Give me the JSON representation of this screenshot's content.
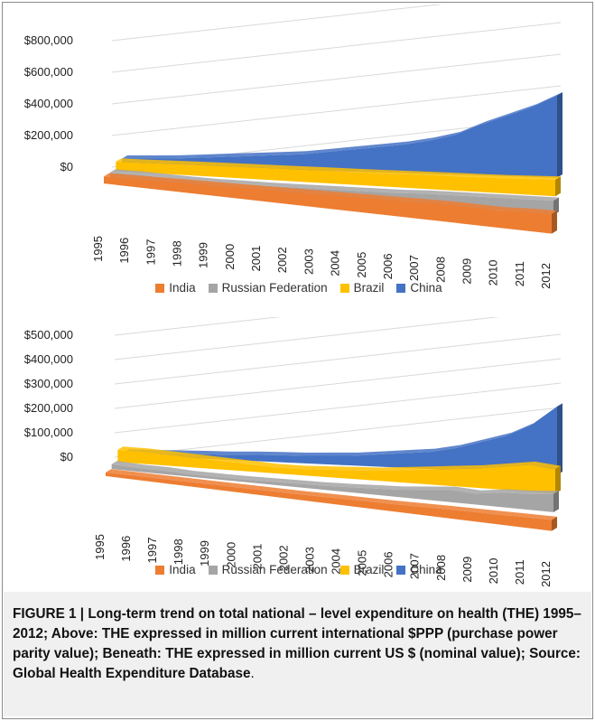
{
  "chart_data": [
    {
      "type": "area",
      "style": "3d-stacked-depth",
      "title": "",
      "categories": [
        "1995",
        "1996",
        "1997",
        "1998",
        "1999",
        "2000",
        "2001",
        "2002",
        "2003",
        "2004",
        "2005",
        "2006",
        "2007",
        "2008",
        "2009",
        "2010",
        "2011",
        "2012"
      ],
      "y_ticks": [
        "$0",
        "$200,000",
        "$400,000",
        "$600,000",
        "$800,000"
      ],
      "ylim": [
        0,
        800000
      ],
      "legend_position": "bottom",
      "series": [
        {
          "name": "India",
          "color": "#ED7D31",
          "values": [
            45000,
            50000,
            55000,
            60000,
            65000,
            70000,
            75000,
            80000,
            85000,
            90000,
            95000,
            100000,
            105000,
            110000,
            110000,
            110000,
            120000,
            125000
          ]
        },
        {
          "name": "Russian Federation",
          "color": "#A5A5A5",
          "values": [
            30000,
            32000,
            28000,
            25000,
            25000,
            28000,
            30000,
            35000,
            40000,
            45000,
            50000,
            55000,
            65000,
            70000,
            75000,
            80000,
            85000,
            90000
          ]
        },
        {
          "name": "Brazil",
          "color": "#FFC000",
          "values": [
            60000,
            62000,
            65000,
            68000,
            70000,
            72000,
            74000,
            76000,
            78000,
            80000,
            82000,
            85000,
            88000,
            90000,
            92000,
            95000,
            100000,
            105000
          ]
        },
        {
          "name": "China",
          "color": "#4472C4",
          "values": [
            40000,
            45000,
            50000,
            60000,
            70000,
            80000,
            90000,
            100000,
            120000,
            140000,
            160000,
            180000,
            210000,
            250000,
            320000,
            380000,
            440000,
            520000
          ]
        }
      ]
    },
    {
      "type": "area",
      "style": "3d-stacked-depth",
      "title": "",
      "categories": [
        "1995",
        "1996",
        "1997",
        "1998",
        "1999",
        "2000",
        "2001",
        "2002",
        "2003",
        "2004",
        "2005",
        "2006",
        "2007",
        "2008",
        "2009",
        "2010",
        "2011",
        "2012"
      ],
      "y_ticks": [
        "$0",
        "$100,000",
        "$200,000",
        "$300,000",
        "$400,000",
        "$500,000"
      ],
      "ylim": [
        0,
        500000
      ],
      "legend_position": "bottom",
      "series": [
        {
          "name": "India",
          "color": "#ED7D31",
          "values": [
            15000,
            16000,
            17000,
            18000,
            19000,
            20000,
            21000,
            22000,
            24000,
            26000,
            28000,
            30000,
            33000,
            36000,
            38000,
            40000,
            43000,
            45000
          ]
        },
        {
          "name": "Russian Federation",
          "color": "#A5A5A5",
          "values": [
            20000,
            15000,
            15000,
            10000,
            10000,
            10000,
            12000,
            14000,
            16000,
            20000,
            25000,
            30000,
            40000,
            50000,
            45000,
            60000,
            65000,
            75000
          ]
        },
        {
          "name": "Brazil",
          "color": "#FFC000",
          "values": [
            50000,
            50000,
            45000,
            40000,
            35000,
            30000,
            25000,
            25000,
            30000,
            35000,
            40000,
            50000,
            60000,
            70000,
            80000,
            95000,
            110000,
            100000
          ]
        },
        {
          "name": "China",
          "color": "#4472C4",
          "values": [
            10000,
            12000,
            15000,
            18000,
            20000,
            25000,
            28000,
            30000,
            35000,
            40000,
            50000,
            60000,
            70000,
            90000,
            120000,
            150000,
            200000,
            280000
          ]
        }
      ]
    }
  ],
  "caption": {
    "text": "FIGURE 1 | Long-term trend on total national – level expenditure on health (THE) 1995–2012; Above: THE expressed in million current international $PPP (purchase power parity value); Beneath: THE expressed in million current US $ (nominal value); Source: Global Health Expenditure Database",
    "end": "."
  }
}
